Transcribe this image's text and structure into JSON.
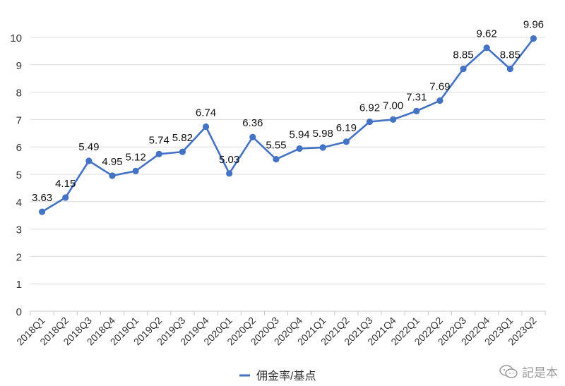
{
  "chart_data": {
    "type": "line",
    "categories": [
      "2018Q1",
      "2018Q2",
      "2018Q3",
      "2018Q4",
      "2019Q1",
      "2019Q2",
      "2019Q3",
      "2019Q4",
      "2020Q1",
      "2020Q2",
      "2020Q3",
      "2020Q4",
      "2021Q1",
      "2021Q2",
      "2021Q3",
      "2021Q4",
      "2022Q1",
      "2022Q2",
      "2022Q3",
      "2022Q4",
      "2023Q1",
      "2023Q2"
    ],
    "series": [
      {
        "name": "佣金率/基点",
        "values": [
          3.63,
          4.15,
          5.49,
          4.95,
          5.12,
          5.74,
          5.82,
          6.74,
          5.03,
          6.36,
          5.55,
          5.94,
          5.98,
          6.19,
          6.92,
          7.0,
          7.31,
          7.69,
          8.85,
          9.62,
          8.85,
          9.96
        ],
        "labels": [
          "3.63",
          "4.15",
          "5.49",
          "4.95",
          "5.12",
          "5.74",
          "5.82",
          "6.74",
          "5.03",
          "6.36",
          "5.55",
          "5.94",
          "5.98",
          "6.19",
          "6.92",
          "7.00",
          "7.31",
          "7.69",
          "8.85",
          "9.62",
          "8.85",
          "9.96"
        ],
        "color": "#4472C4"
      }
    ],
    "yticks": [
      "0",
      "1",
      "2",
      "3",
      "4",
      "5",
      "6",
      "7",
      "8",
      "9",
      "10"
    ],
    "ylim": [
      0,
      10
    ],
    "grid": true,
    "legend_position": "bottom"
  },
  "watermark": {
    "text": "記是本",
    "icon": "wechat-icon"
  }
}
